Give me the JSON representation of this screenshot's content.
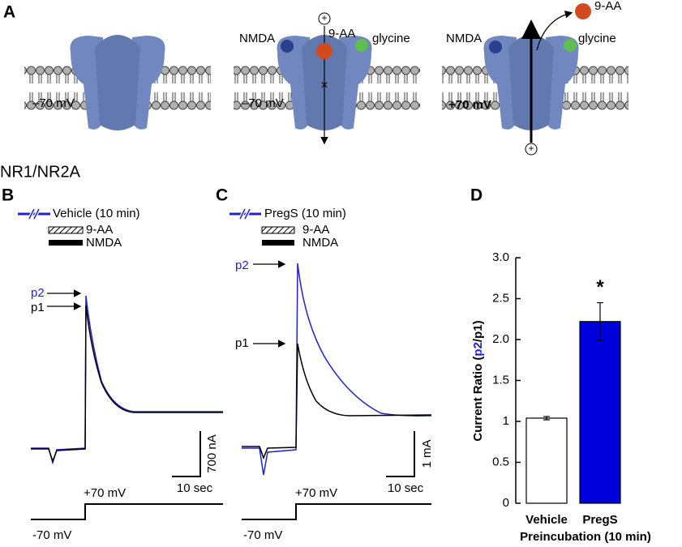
{
  "panel_a": {
    "label": "A",
    "states": [
      {
        "voltage": "–70 mV"
      },
      {
        "voltage": "–70 mV",
        "nmda": "NMDA",
        "blocker": "9-AA",
        "glycine": "glycine"
      },
      {
        "voltage": "+70 mV",
        "nmda": "NMDA",
        "blocker": "9-AA",
        "glycine": "glycine"
      }
    ]
  },
  "construct": "NR1/NR2A",
  "panel_b": {
    "label": "B",
    "legend": [
      "Vehicle (10 min)",
      "9-AA",
      "NMDA"
    ],
    "peaks": [
      "p2",
      "p1"
    ],
    "scale_y": "700 nA",
    "scale_x": "10 sec",
    "v_high": "+70 mV",
    "v_low": "-70 mV"
  },
  "panel_c": {
    "label": "C",
    "legend": [
      "PregS (10 min)",
      "9-AA",
      "NMDA"
    ],
    "peaks": [
      "p2",
      "p1"
    ],
    "scale_y": "1 mA",
    "scale_x": "10 sec",
    "v_high": "+70 mV",
    "v_low": "-70 mV"
  },
  "chart_data": {
    "type": "bar",
    "panel_label": "D",
    "ylabel": [
      "Current Ratio (",
      "p2",
      "/p1)"
    ],
    "ylabel_highlight_color": "#2222cc",
    "xlabel": "Preincubation (10 min)",
    "categories": [
      "Vehicle",
      "PregS"
    ],
    "values": [
      1.04,
      2.22
    ],
    "errors": [
      0.02,
      0.23
    ],
    "colors": [
      "#ffffff",
      "#0000dd"
    ],
    "annotations": [
      null,
      "*"
    ],
    "ylim": [
      0,
      3
    ],
    "yticks": [
      0,
      0.5,
      1,
      {
        "value": 1.5,
        "label": "1.5"
      },
      {
        "value": 2,
        "label": "2.0"
      },
      2.5,
      {
        "value": 3,
        "label": "3.0"
      }
    ]
  }
}
